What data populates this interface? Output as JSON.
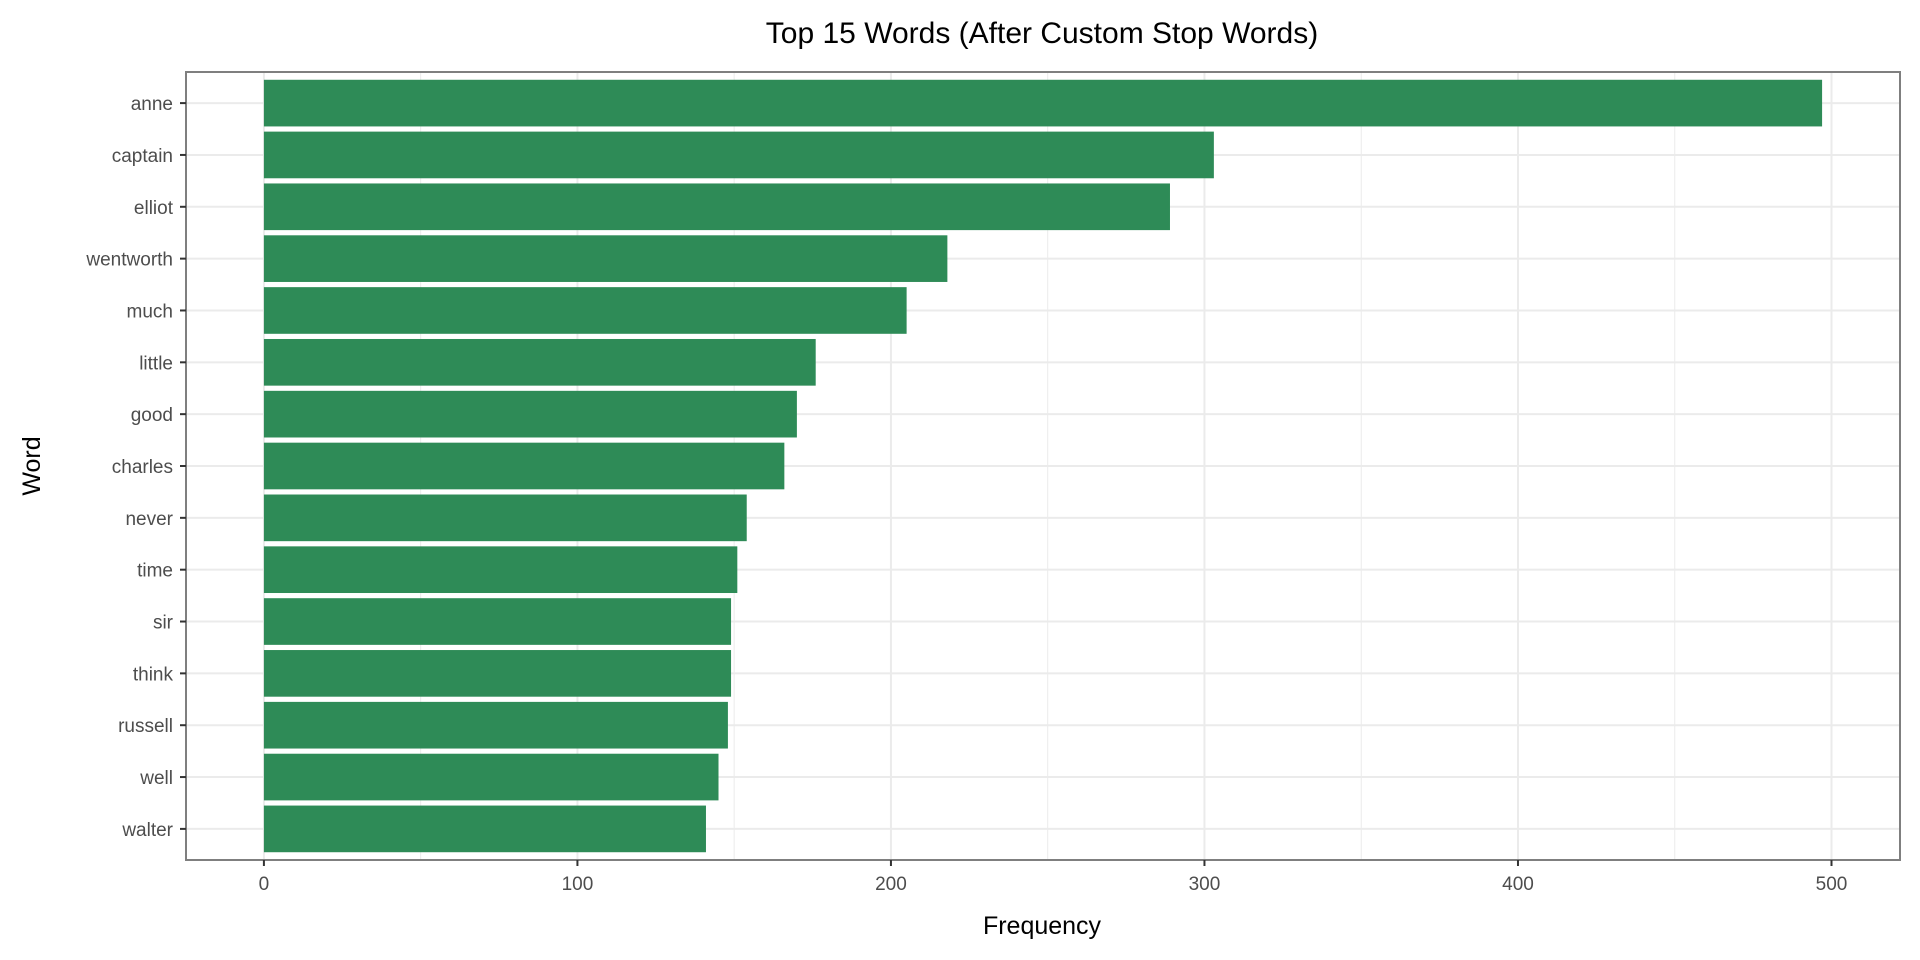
{
  "chart_data": {
    "type": "bar",
    "orientation": "horizontal",
    "title": "Top 15 Words (After Custom Stop Words)",
    "xlabel": "Frequency",
    "ylabel": "Word",
    "categories": [
      "anne",
      "captain",
      "elliot",
      "wentworth",
      "much",
      "little",
      "good",
      "charles",
      "never",
      "time",
      "sir",
      "think",
      "russell",
      "well",
      "walter"
    ],
    "values": [
      497,
      303,
      289,
      218,
      205,
      176,
      170,
      166,
      154,
      151,
      149,
      149,
      148,
      145,
      141
    ],
    "xlim": [
      -24.85,
      521.85
    ],
    "x_ticks": [
      0,
      100,
      200,
      300,
      400,
      500
    ],
    "x_tick_labels": [
      "0",
      "100",
      "200",
      "300",
      "400",
      "500"
    ],
    "grid": true,
    "legend": "none",
    "bar_color": "#2e8b57",
    "grid_color": "#ebebeb",
    "panel_border_color": "#7f7f7f"
  }
}
